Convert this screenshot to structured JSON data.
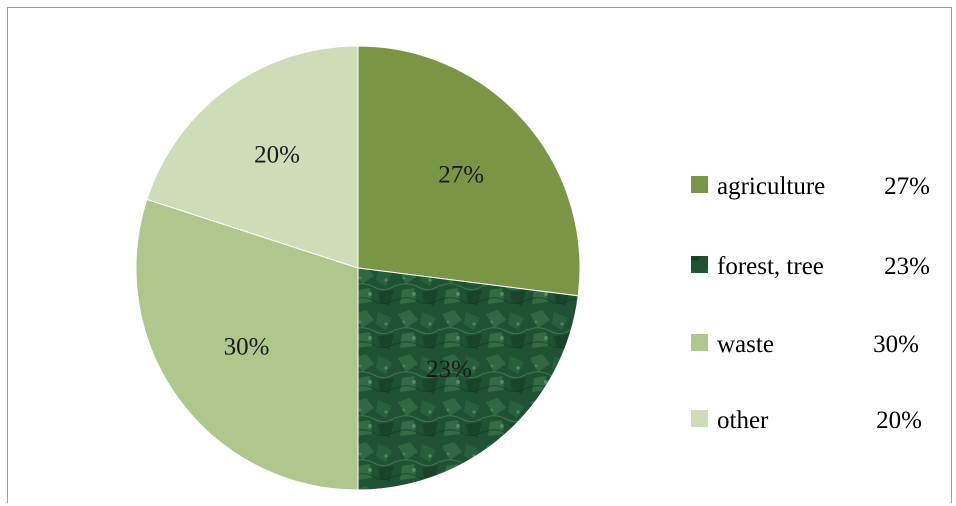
{
  "chart_data": {
    "type": "pie",
    "title": "",
    "slices": [
      {
        "label": "agriculture",
        "value": 27,
        "value_label": "27%",
        "color": "#7a9645"
      },
      {
        "label": "forest, tree",
        "value": 23,
        "value_label": "23%",
        "color": "#1f5232"
      },
      {
        "label": "waste",
        "value": 30,
        "value_label": "30%",
        "color": "#aec78a"
      },
      {
        "label": "other",
        "value": 20,
        "value_label": "20%",
        "color": "#cedcb8"
      }
    ],
    "start_angle": "12 o'clock",
    "direction": "clockwise",
    "legend": {
      "position": "right",
      "entries": [
        {
          "name": "agriculture",
          "value": "27%"
        },
        {
          "name": "forest, tree",
          "value": "23%"
        },
        {
          "name": "waste",
          "value": "30%"
        },
        {
          "name": "other",
          "value": "20%"
        }
      ]
    }
  }
}
